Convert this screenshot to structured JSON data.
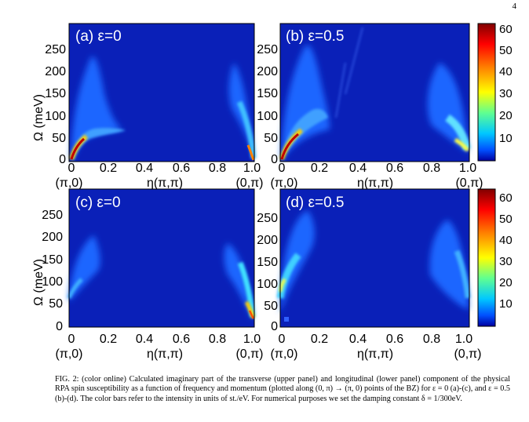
{
  "page_number": "4",
  "panels": [
    {
      "id": "a",
      "label": "(a) ε=0"
    },
    {
      "id": "b",
      "label": "(b) ε=0.5"
    },
    {
      "id": "c",
      "label": "(c) ε=0"
    },
    {
      "id": "d",
      "label": "(d) ε=0.5"
    }
  ],
  "y_axis_label": "Ω (meV)",
  "y_ticks": [
    "0",
    "50",
    "100",
    "150",
    "200",
    "250"
  ],
  "x_ticks": [
    "0",
    "0.2",
    "0.4",
    "0.6",
    "0.8",
    "1.0"
  ],
  "x_axis_label": "η(π,π)",
  "x_end_labels": {
    "left": "(π,0)",
    "right": "(0,π)"
  },
  "colorbars": {
    "upper": [
      "10",
      "20",
      "30",
      "40",
      "50",
      "60"
    ],
    "lower": [
      "10",
      "20",
      "30",
      "40",
      "50",
      "60"
    ]
  },
  "colors": {
    "background_low": "#0a20b8",
    "high": "#8b0000"
  },
  "caption": {
    "label": "FIG. 2:",
    "text": "(color online) Calculated imaginary part of the transverse (upper panel) and longitudinal (lower panel) component of the physical RPA spin susceptibility as a function of frequency and momentum (plotted along (0, π) → (π, 0) points of the BZ) for ε = 0 (a)-(c), and ε = 0.5 (b)-(d). The color bars refer to the intensity in units of st./eV. For numerical purposes we set the damping constant δ = 1/300eV."
  }
}
